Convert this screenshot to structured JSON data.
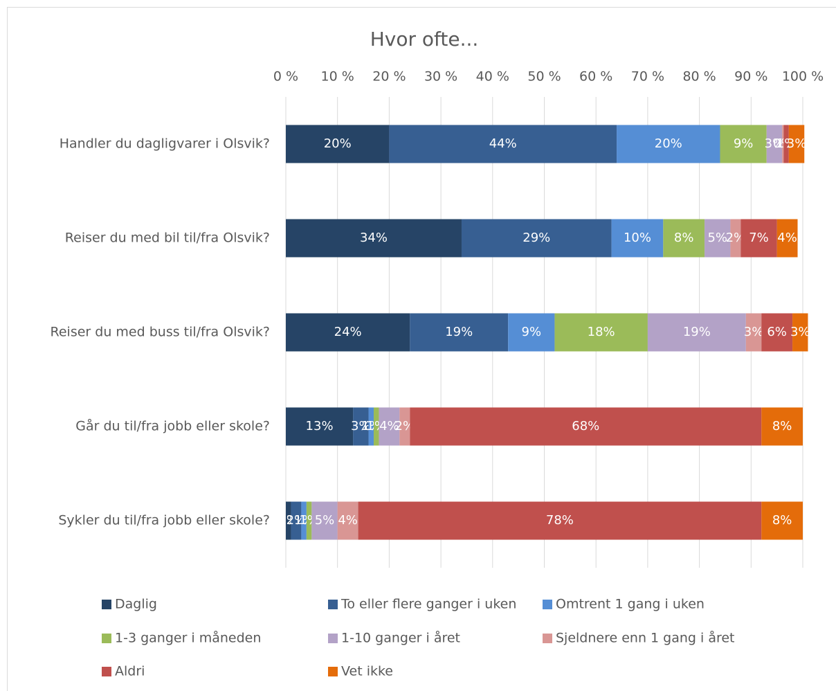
{
  "chart_data": {
    "type": "stacked-bar-horizontal-percent",
    "title": "Hvor ofte...",
    "categories": [
      "Handler du dagligvarer i Olsvik?",
      "Reiser du med bil til/fra Olsvik?",
      "Reiser du med buss til/fra Olsvik?",
      "Går du til/fra jobb eller skole?",
      "Sykler du til/fra jobb eller skole?"
    ],
    "series": [
      {
        "name": "Daglig",
        "color": "#264466",
        "values": [
          20,
          34,
          24,
          13,
          1
        ],
        "value_labels": [
          "20%",
          "34%",
          "24%",
          "13%",
          "1%"
        ]
      },
      {
        "name": "To eller flere ganger i uken",
        "color": "#375f92",
        "values": [
          44,
          29,
          19,
          3,
          2
        ],
        "value_labels": [
          "44%",
          "29%",
          "19%",
          "3%",
          "2%"
        ]
      },
      {
        "name": "Omtrent 1 gang i uken",
        "color": "#558ed5",
        "values": [
          20,
          10,
          9,
          1,
          1
        ],
        "value_labels": [
          "20%",
          "10%",
          "9%",
          "1%",
          "1%"
        ]
      },
      {
        "name": "1-3 ganger i måneden",
        "color": "#9bbb59",
        "values": [
          9,
          8,
          18,
          1,
          1
        ],
        "value_labels": [
          "9%",
          "8%",
          "18%",
          "1%",
          "1%"
        ]
      },
      {
        "name": "1-10 ganger i året",
        "color": "#b3a2c7",
        "values": [
          3,
          5,
          19,
          4,
          5
        ],
        "value_labels": [
          "3%",
          "5%",
          "19%",
          "4%",
          "5%"
        ]
      },
      {
        "name": "Sjeldnere enn 1 gang i året",
        "color": "#d99694",
        "values": [
          0.3,
          2,
          3,
          2,
          4
        ],
        "value_labels": [
          "0%",
          "2%",
          "3%",
          "2%",
          "4%"
        ]
      },
      {
        "name": "Aldri",
        "color": "#c0504d",
        "values": [
          1,
          7,
          6,
          68,
          78
        ],
        "value_labels": [
          "1%",
          "7%",
          "6%",
          "68%",
          "78%"
        ]
      },
      {
        "name": "Vet ikke",
        "color": "#e46c0a",
        "values": [
          3,
          4,
          3,
          8,
          8
        ],
        "value_labels": [
          "3%",
          "4%",
          "3%",
          "8%",
          "8%"
        ]
      }
    ],
    "xlim": [
      0,
      100
    ],
    "xticks": [
      {
        "value": 0,
        "label": "0 %"
      },
      {
        "value": 10,
        "label": "10 %"
      },
      {
        "value": 20,
        "label": "20 %"
      },
      {
        "value": 30,
        "label": "30 %"
      },
      {
        "value": 40,
        "label": "40 %"
      },
      {
        "value": 50,
        "label": "50 %"
      },
      {
        "value": 60,
        "label": "60 %"
      },
      {
        "value": 70,
        "label": "70 %"
      },
      {
        "value": 80,
        "label": "80 %"
      },
      {
        "value": 90,
        "label": "90 %"
      },
      {
        "value": 100,
        "label": "100 %"
      }
    ],
    "grid": true,
    "legend": "bottom"
  }
}
